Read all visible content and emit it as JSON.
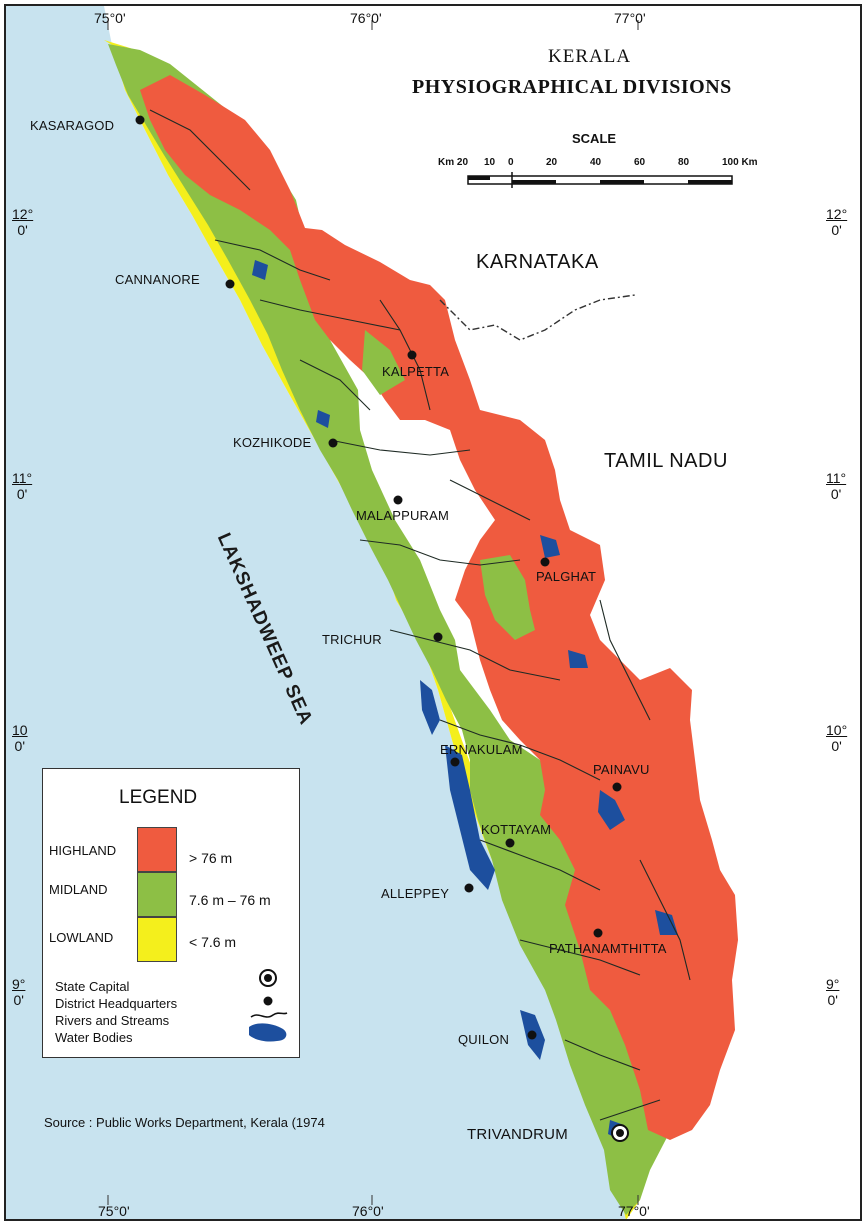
{
  "title": {
    "line1": "KERALA",
    "line2": "PHYSIOGRAPHICAL DIVISIONS"
  },
  "scale": {
    "label": "SCALE",
    "ticks": [
      "Km 20",
      "10",
      "0",
      "20",
      "40",
      "60",
      "80",
      "100 Km"
    ]
  },
  "colors": {
    "sea": "#c8e3ef",
    "highland": "#ef5b3f",
    "midland": "#8dbf45",
    "lowland": "#f4ef1c",
    "water": "#1d4f9e",
    "river": "#1e2a24"
  },
  "coords": {
    "top": [
      "75°0'",
      "76°0'",
      "77°0'"
    ],
    "bottom": [
      "75°0'",
      "76°0'",
      "77°0'"
    ],
    "left": [
      {
        "deg": "12°",
        "min": "0'"
      },
      {
        "deg": "11°",
        "min": "0'"
      },
      {
        "deg": "10",
        "min": "0'"
      },
      {
        "deg": "9°",
        "min": "0'"
      }
    ],
    "right": [
      {
        "deg": "12°",
        "min": "0'"
      },
      {
        "deg": "11°",
        "min": "0'"
      },
      {
        "deg": "10°",
        "min": "0'"
      },
      {
        "deg": "9°",
        "min": "0'"
      }
    ]
  },
  "states": {
    "karnataka": "KARNATAKA",
    "tamil_nadu": "TAMIL NADU"
  },
  "sea_label": "LAKSHADWEEP SEA",
  "places": {
    "kasaragod": "KASARAGOD",
    "cannanore": "CANNANORE",
    "kalpetta": "KALPETTA",
    "kozhikode": "KOZHIKODE",
    "malappuram": "MALAPPURAM",
    "palghat": "PALGHAT",
    "trichur": "TRICHUR",
    "ernakulam": "ERNAKULAM",
    "painavu": "PAINAVU",
    "kottayam": "KOTTAYAM",
    "alleppey": "ALLEPPEY",
    "pathanamthitta": "PATHANAMTHITTA",
    "quilon": "QUILON",
    "trivandrum": "TRIVANDRUM"
  },
  "legend": {
    "title": "LEGEND",
    "divisions": [
      {
        "name": "HIGHLAND",
        "range": "> 76 m"
      },
      {
        "name": "MIDLAND",
        "range": "7.6 m – 76 m"
      },
      {
        "name": "LOWLAND",
        "range": "< 7.6 m"
      }
    ],
    "symbols": [
      "State Capital",
      "District Headquarters",
      "Rivers and Streams",
      "Water Bodies"
    ]
  },
  "source": "Source : Public Works Department, Kerala (1974\t"
}
